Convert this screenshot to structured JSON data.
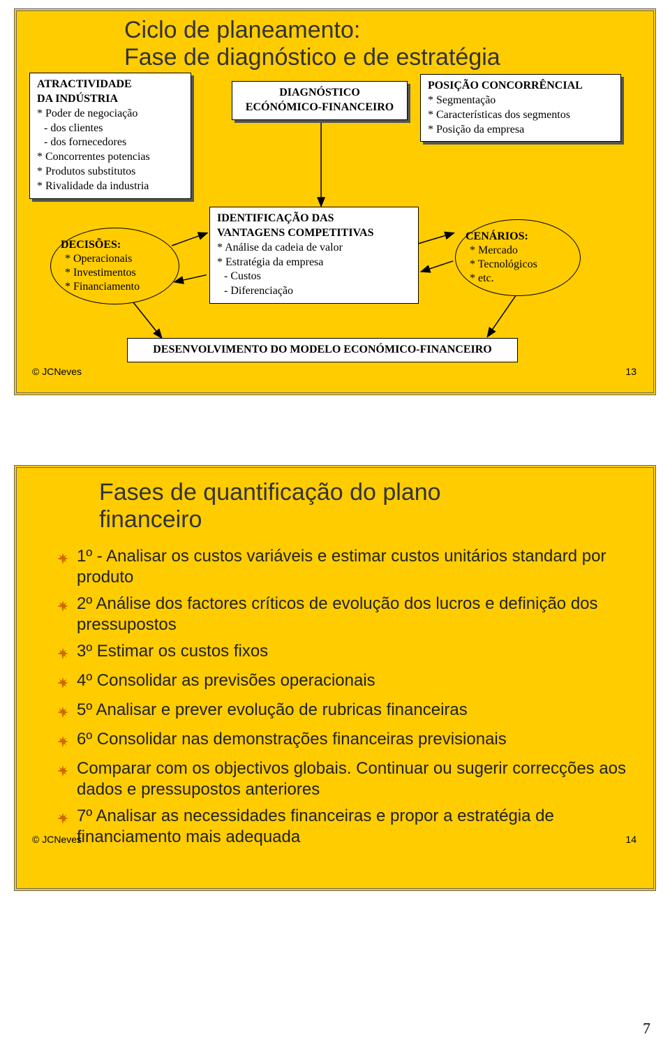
{
  "page": {
    "bg_color": "#ffcc00",
    "border_color": "#666666",
    "text_color": "#333333",
    "serif_font": "Times New Roman",
    "sans_font": "Arial",
    "copyright": "© JCNeves",
    "corner_number": "7"
  },
  "slide13": {
    "page_number": "13",
    "title_line1": "Ciclo de planeamento:",
    "title_line2": "Fase de diagnóstico e de estratégia",
    "box_atractividade": {
      "heading1": "ATRACTIVIDADE",
      "heading2": "DA INDÚSTRIA",
      "items": [
        "* Poder de negociação",
        "  - dos clientes",
        "  - dos fornecedores",
        "* Concorrentes potencias",
        "* Produtos substitutos",
        "* Rivalidade da industria"
      ]
    },
    "box_diagnostico": {
      "line1": "DIAGNÓSTICO",
      "line2": "ECÓNÓMICO-FINANCEIRO"
    },
    "box_posicao": {
      "heading": "POSIÇÃO CONCORRÊNCIAL",
      "items": [
        "* Segmentação",
        "* Características dos segmentos",
        "* Posição da empresa"
      ]
    },
    "ellipse_decisoes": {
      "heading": "DECISÕES:",
      "items": [
        "* Operacionais",
        "* Investimentos",
        "* Financiamento"
      ]
    },
    "box_identificacao": {
      "heading1": "IDENTIFICAÇÃO DAS",
      "heading2": "VANTAGENS COMPETITIVAS",
      "items": [
        "* Análise da cadeia de valor",
        "* Estratégia da empresa",
        "  - Custos",
        "  - Diferenciação"
      ]
    },
    "ellipse_cenarios": {
      "heading": "CENÁRIOS:",
      "items": [
        "* Mercado",
        "* Tecnológicos",
        "* etc."
      ]
    },
    "box_desenvolvimento": "DESENVOLVIMENTO DO MODELO ECONÓMICO-FINANCEIRO",
    "arrow_color": "#000000"
  },
  "slide14": {
    "page_number": "14",
    "title_line1": "Fases de quantificação do plano",
    "title_line2": "financeiro",
    "bullet_icon_color": "#cc6600",
    "items": [
      "1º - Analisar os custos variáveis e estimar custos unitários standard por produto",
      "2º Análise dos factores críticos de evolução dos lucros e definição dos pressupostos",
      "3º Estimar os custos fixos",
      "4º Consolidar as previsões operacionais",
      "5º Analisar e prever evolução de rubricas financeiras",
      "6º Consolidar nas demonstrações financeiras previsionais",
      "Comparar com os objectivos globais. Continuar ou sugerir correcções aos dados e pressupostos anteriores",
      "7º Analisar as necessidades financeiras e propor a estratégia de financiamento mais adequada"
    ]
  }
}
